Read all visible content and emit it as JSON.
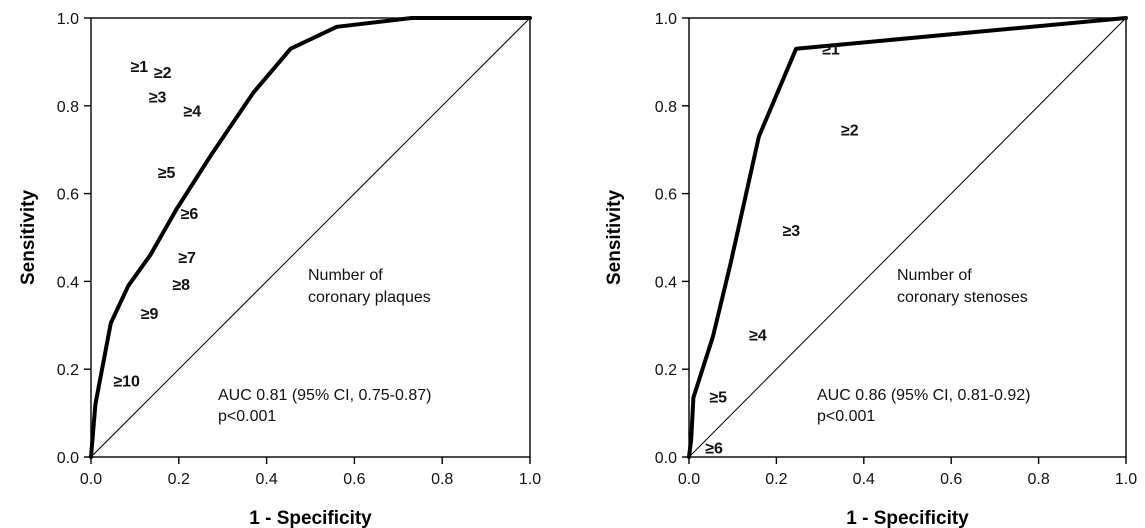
{
  "chart_data": [
    {
      "type": "line",
      "xlabel": "1 - Specificity",
      "ylabel": "Sensitivity",
      "xlim": [
        0,
        1
      ],
      "ylim": [
        0,
        1
      ],
      "x_ticks": [
        "0.0",
        "0.2",
        "0.4",
        "0.6",
        "0.8",
        "1.0"
      ],
      "y_ticks": [
        "0.0",
        "0.2",
        "0.4",
        "0.6",
        "0.8",
        "1.0"
      ],
      "grid": false,
      "series": [
        {
          "x": [
            0,
            0.01,
            0.045,
            0.085,
            0.135,
            0.195,
            0.275,
            0.37,
            0.455,
            0.56,
            0.73,
            1
          ],
          "y": [
            0,
            0.12,
            0.305,
            0.39,
            0.46,
            0.565,
            0.69,
            0.83,
            0.93,
            0.98,
            1,
            1
          ],
          "point_labels": [
            "",
            "≥10",
            "≥9",
            "≥8",
            "≥7",
            "≥6",
            "≥5",
            "≥4",
            "≥3",
            "≥2",
            "≥1",
            ""
          ]
        }
      ],
      "reference_line": {
        "x": [
          0,
          1
        ],
        "y": [
          0,
          1
        ]
      },
      "annotations": [
        "Number of",
        "coronary plaques"
      ],
      "auc_text": "AUC 0.81 (95% CI, 0.75-0.87)",
      "p_text": "p<0.001"
    },
    {
      "type": "line",
      "xlabel": "1 - Specificity",
      "ylabel": "Sensitivity",
      "xlim": [
        0,
        1
      ],
      "ylim": [
        0,
        1
      ],
      "x_ticks": [
        "0.0",
        "0.2",
        "0.4",
        "0.6",
        "0.8",
        "1.0"
      ],
      "y_ticks": [
        "0.0",
        "0.2",
        "0.4",
        "0.6",
        "0.8",
        "1.0"
      ],
      "grid": false,
      "series": [
        {
          "x": [
            0,
            0.005,
            0.01,
            0.055,
            0.095,
            0.16,
            0.245,
            1
          ],
          "y": [
            0,
            0.04,
            0.135,
            0.275,
            0.44,
            0.73,
            0.93,
            1
          ],
          "point_labels": [
            "",
            "≥6",
            "≥5",
            "≥4",
            "≥3",
            "≥2",
            "≥1",
            ""
          ]
        }
      ],
      "reference_line": {
        "x": [
          0,
          1
        ],
        "y": [
          0,
          1
        ]
      },
      "annotations": [
        "Number of",
        "coronary stenoses"
      ],
      "auc_text": "AUC 0.86 (95% CI, 0.81-0.92)",
      "p_text": "p<0.001"
    }
  ]
}
